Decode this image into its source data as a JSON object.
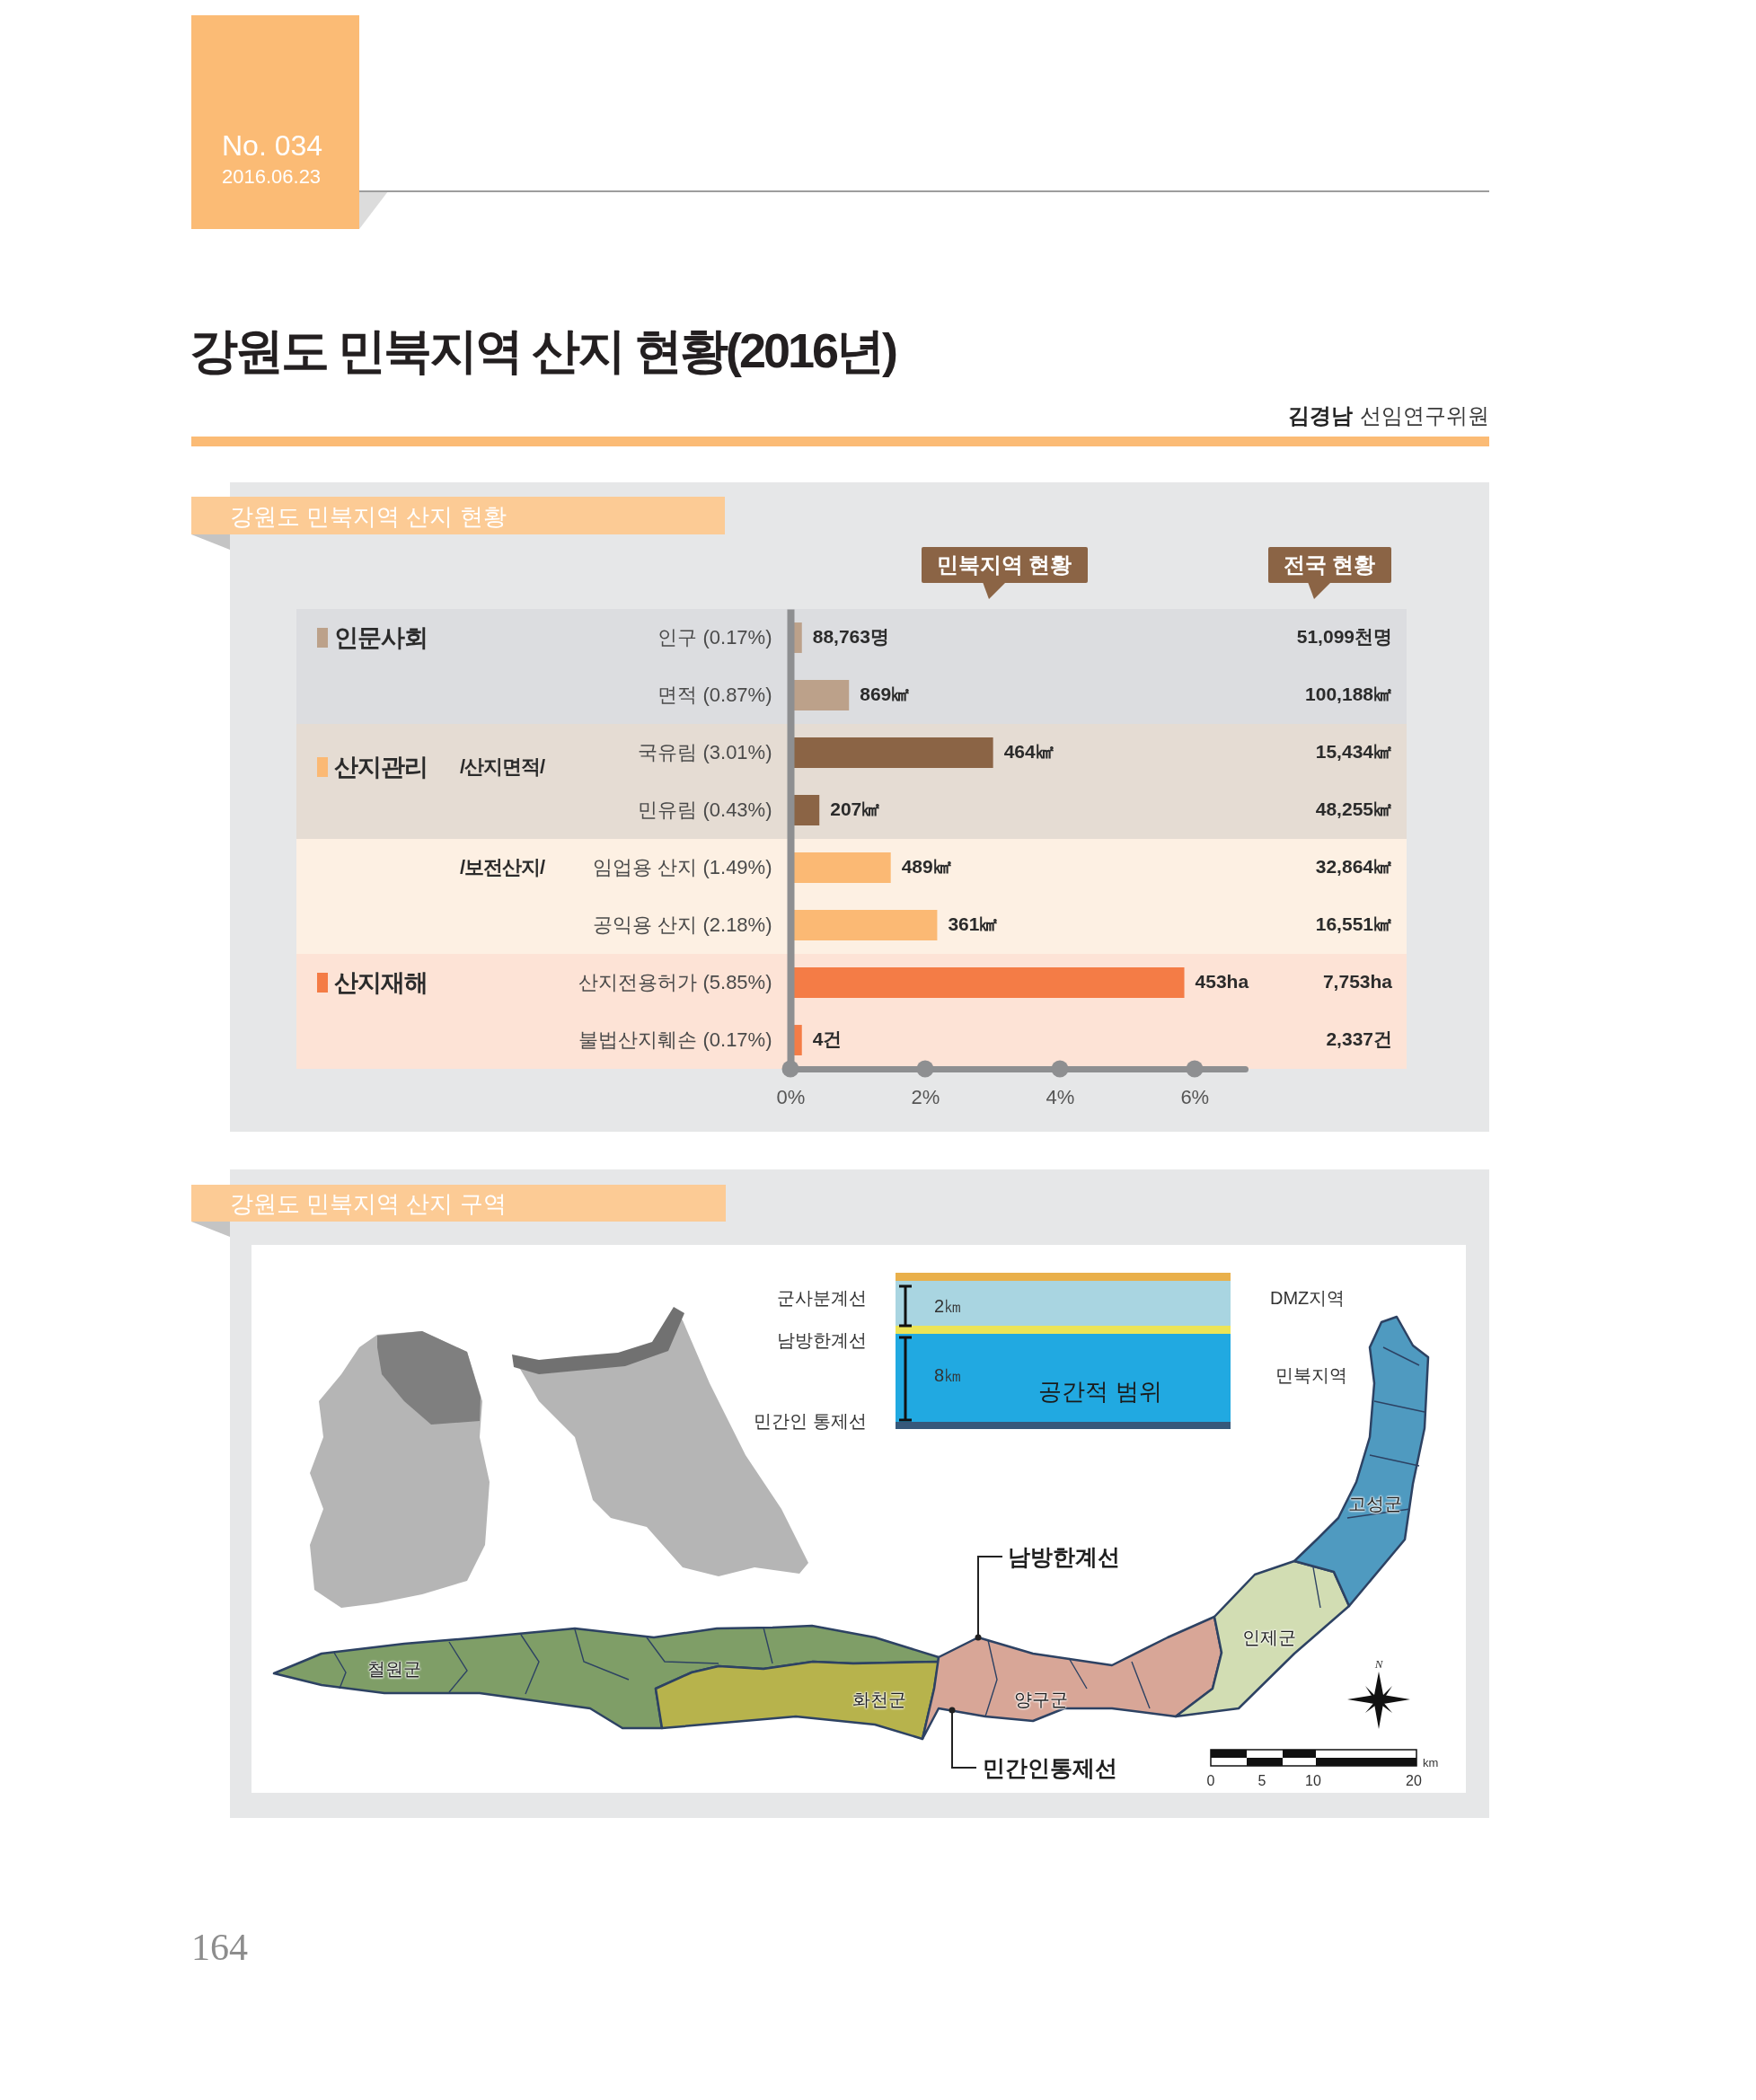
{
  "chart_data": [
    {
      "type": "bar",
      "orientation": "horizontal",
      "title": "강원도 민북지역 산지 현황(2016년)",
      "subtitle": "강원도 민북지역 산지 현황",
      "categories": [
        "인구 (0.17%)",
        "면적 (0.87%)",
        "국유림 (3.01%)",
        "민유림 (0.43%)",
        "임업용 산지 (1.49%)",
        "공익용 산지 (2.18%)",
        "산지전용허가 (5.85%)",
        "불법산지훼손 (0.17%)"
      ],
      "values": [
        0.17,
        0.87,
        3.01,
        0.43,
        1.49,
        2.18,
        5.85,
        0.17
      ],
      "colors": [
        "#bca18a",
        "#bca18a",
        "#8b6445",
        "#8b6445",
        "#fbb974",
        "#fbb974",
        "#f47c46",
        "#f47c46"
      ],
      "xlim": [
        0,
        6.75
      ],
      "xticks": [
        {
          "value": 0,
          "label": "0%"
        },
        {
          "value": 2,
          "label": "2%"
        },
        {
          "value": 4,
          "label": "4%"
        },
        {
          "value": 6,
          "label": "6%"
        }
      ],
      "bands": [
        {
          "axis": "y",
          "from": "인구 (0.17%)",
          "to": "면적 (0.87%)",
          "color": "#dcdde0"
        },
        {
          "axis": "y",
          "from": "국유림 (3.01%)",
          "to": "민유림 (0.43%)",
          "color": "#e5dcd3"
        },
        {
          "axis": "y",
          "from": "임업용 산지 (1.49%)",
          "to": "공익용 산지 (2.18%)",
          "color": "#fdf0e3"
        },
        {
          "axis": "y",
          "from": "산지전용허가 (5.85%)",
          "to": "불법산지훼손 (0.17%)",
          "color": "#fde3d6"
        }
      ],
      "annotations": [
        "No. 034",
        "2016.06.23",
        "김경남",
        "선임연구위원",
        "민북지역 현황",
        "전국 현황",
        "인문사회",
        "산지관리",
        "/산지면적/",
        "/보전산지/",
        "산지재해",
        "51,099천명",
        "100,188㎢",
        "15,434㎢",
        "48,255㎢",
        "32,864㎢",
        "16,551㎢",
        "7,753ha",
        "2,337건",
        {
          "text": "88,763명",
          "x": 0.17,
          "y": "인구 (0.17%)"
        },
        {
          "text": "869㎢",
          "x": 0.87,
          "y": "면적 (0.87%)"
        },
        {
          "text": "464㎢",
          "x": 3.01,
          "y": "국유림 (3.01%)"
        },
        {
          "text": "207㎢",
          "x": 0.43,
          "y": "민유림 (0.43%)"
        },
        {
          "text": "489㎢",
          "x": 1.49,
          "y": "임업용 산지 (1.49%)"
        },
        {
          "text": "361㎢",
          "x": 2.18,
          "y": "공익용 산지 (2.18%)"
        },
        {
          "text": "453ha",
          "x": 5.85,
          "y": "산지전용허가 (5.85%)"
        },
        {
          "text": "4건",
          "x": 0.17,
          "y": "불법산지훼손 (0.17%)"
        }
      ]
    },
    {
      "type": "other",
      "title": "강원도 민북지역 산지 구역",
      "annotations": [
        "군사분계선",
        "남방한계선",
        "민간인 통제선",
        "2㎞",
        "8㎞",
        "공간적 범위",
        "DMZ지역",
        "민북지역",
        "고성군",
        "인제군",
        "철원군",
        "화천군",
        "양구군",
        "남방한계선",
        "민간인통제선",
        "N",
        "0",
        "5",
        "10",
        "20",
        "km",
        "164"
      ]
    }
  ]
}
